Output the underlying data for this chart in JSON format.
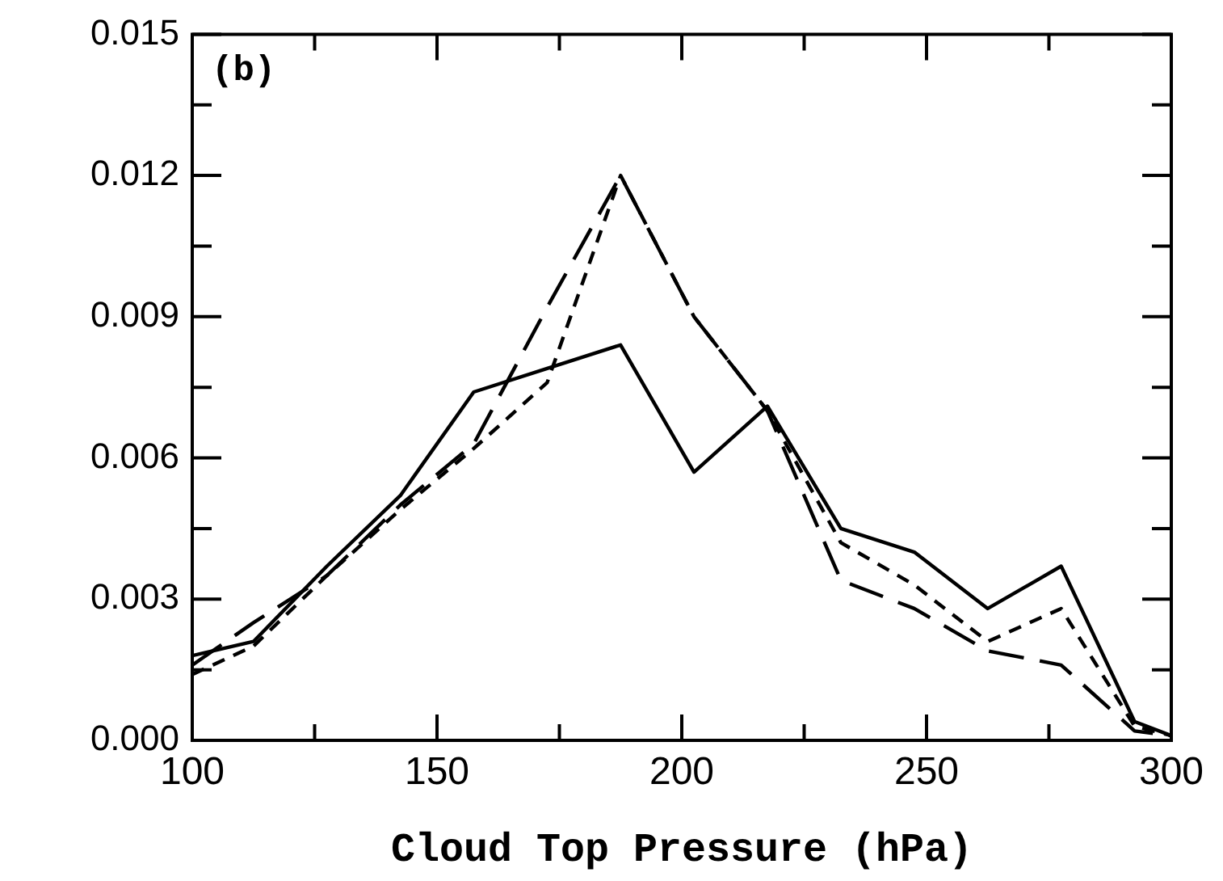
{
  "chart_data": {
    "type": "line",
    "xlabel": "Cloud Top Pressure (hPa)",
    "annotations": [
      "(b)"
    ],
    "xlim": [
      100,
      300
    ],
    "xticks": [
      100,
      {
        "value": 125,
        "label": null
      },
      150,
      {
        "value": 175,
        "label": null
      },
      200,
      {
        "value": 225,
        "label": null
      },
      250,
      {
        "value": 275,
        "label": null
      },
      300
    ],
    "ylim": [
      0,
      0.015
    ],
    "yticks": [
      {
        "value": 0,
        "label": "0.000"
      },
      {
        "value": 0.0015,
        "label": null
      },
      {
        "value": 0.003,
        "label": "0.003"
      },
      {
        "value": 0.0045,
        "label": null
      },
      {
        "value": 0.006,
        "label": "0.006"
      },
      {
        "value": 0.0075,
        "label": null
      },
      {
        "value": 0.009,
        "label": "0.009"
      },
      {
        "value": 0.0105,
        "label": null
      },
      {
        "value": 0.012,
        "label": "0.012"
      },
      {
        "value": 0.0135,
        "label": null
      },
      {
        "value": 0.015,
        "label": "0.015"
      }
    ],
    "grid": false,
    "legend": false,
    "marker": "none",
    "x": [
      100,
      112.5,
      127.5,
      142.5,
      157.5,
      172.5,
      187.5,
      202.5,
      217.5,
      232.5,
      247.5,
      262.5,
      277.5,
      292.5,
      300
    ],
    "series": [
      {
        "color": "#000000",
        "line_style": "solid",
        "values": [
          0.0018,
          0.0021,
          0.0037,
          0.0052,
          0.0074,
          0.0079,
          0.0084,
          0.0057,
          0.0071,
          0.0045,
          0.004,
          0.0028,
          0.0037,
          0.0004,
          0.0001
        ]
      },
      {
        "color": "#000000",
        "line_style": "dashed",
        "values": [
          0.0016,
          0.0025,
          0.0035,
          0.005,
          0.0063,
          0.0092,
          0.012,
          0.009,
          0.007,
          0.0034,
          0.0028,
          0.0019,
          0.0016,
          0.0002,
          0.0001
        ]
      },
      {
        "color": "#000000",
        "line_style": "dotted",
        "values": [
          0.0014,
          0.002,
          0.0035,
          0.0049,
          0.0062,
          0.0076,
          0.012,
          0.009,
          0.007,
          0.0042,
          0.0033,
          0.0021,
          0.0028,
          0.0003,
          0.0001
        ]
      }
    ]
  }
}
